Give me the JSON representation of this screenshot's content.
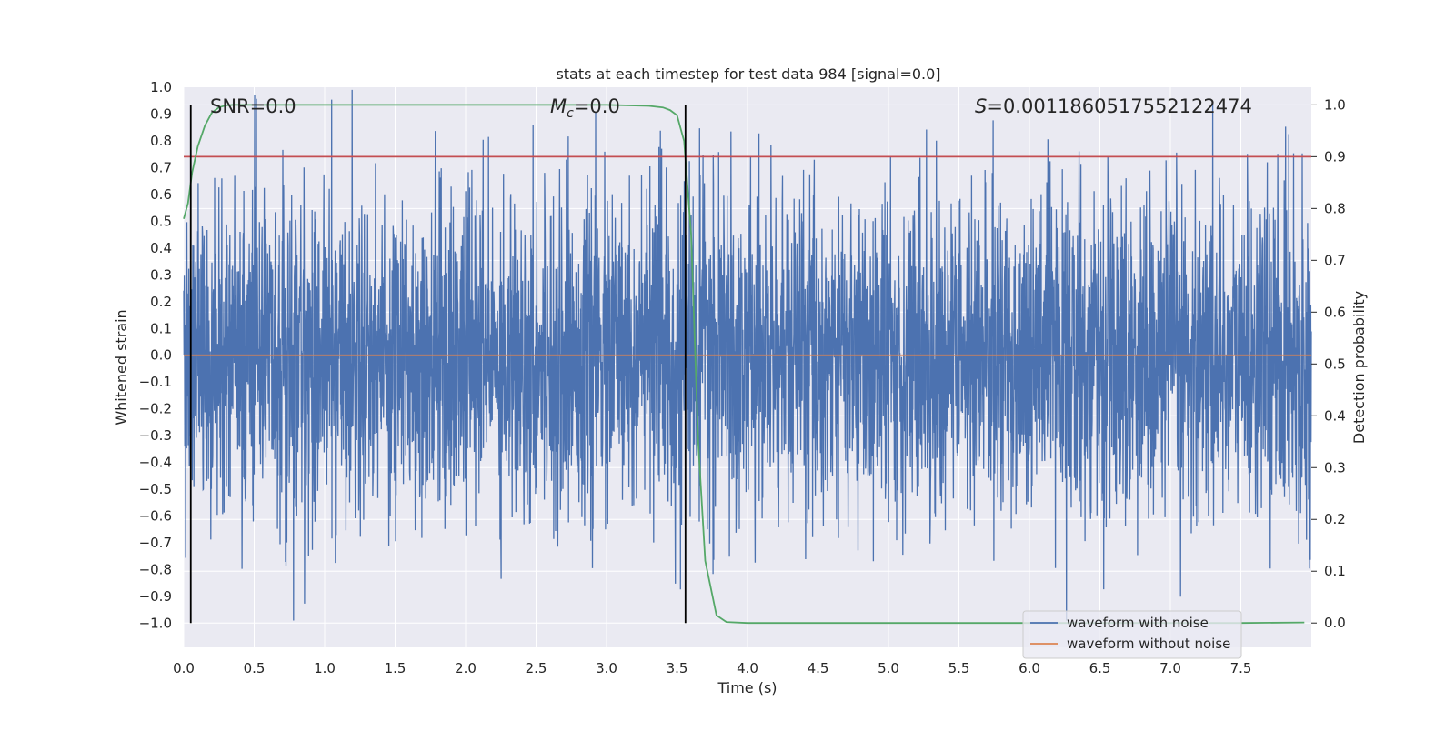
{
  "chart_data": {
    "type": "line",
    "title": "stats at each timestep for test data 984 [signal=0.0]",
    "xlabel": "Time (s)",
    "ylabel": "Whitened strain",
    "y2label": "Detection probability",
    "xlim": [
      0.0,
      8.0
    ],
    "ylim": [
      -1.09,
      1.0
    ],
    "y2lim": [
      -0.047,
      1.034
    ],
    "x_ticks": [
      0.0,
      0.5,
      1.0,
      1.5,
      2.0,
      2.5,
      3.0,
      3.5,
      4.0,
      4.5,
      5.0,
      5.5,
      6.0,
      6.5,
      7.0,
      7.5
    ],
    "x_tick_labels": [
      "0.0",
      "0.5",
      "1.0",
      "1.5",
      "2.0",
      "2.5",
      "3.0",
      "3.5",
      "4.0",
      "4.5",
      "5.0",
      "5.5",
      "6.0",
      "6.5",
      "7.0",
      "7.5"
    ],
    "y_ticks": [
      1.0,
      0.9,
      0.8,
      0.7,
      0.6,
      0.5,
      0.4,
      0.3,
      0.2,
      0.1,
      0.0,
      -0.1,
      -0.2,
      -0.3,
      -0.4,
      -0.5,
      -0.6,
      -0.7,
      -0.8,
      -0.9,
      -1.0
    ],
    "y_tick_labels": [
      "1.0",
      "0.9",
      "0.8",
      "0.7",
      "0.6",
      "0.5",
      "0.4",
      "0.3",
      "0.2",
      "0.1",
      "0.0",
      "−0.1",
      "−0.2",
      "−0.3",
      "−0.4",
      "−0.5",
      "−0.6",
      "−0.7",
      "−0.8",
      "−0.9",
      "−1.0"
    ],
    "y2_ticks": [
      1.0,
      0.9,
      0.8,
      0.7,
      0.6,
      0.5,
      0.4,
      0.3,
      0.2,
      0.1,
      0.0
    ],
    "y2_tick_labels": [
      "1.0",
      "0.9",
      "0.8",
      "0.7",
      "0.6",
      "0.5",
      "0.4",
      "0.3",
      "0.2",
      "0.1",
      "0.0"
    ],
    "annotations": {
      "snr": "SNR=0.0",
      "mc_symbol": "M",
      "mc_subscript": "c",
      "mc_value": "=0.0",
      "s_symbol": "S",
      "s_value": "=0.0011860517552122474"
    },
    "vertical_markers": [
      0.05,
      3.56
    ],
    "threshold": 0.9,
    "detection_probability": {
      "x": [
        0.0,
        0.03,
        0.06,
        0.1,
        0.15,
        0.2,
        0.25,
        0.3,
        0.35,
        0.4,
        0.5,
        1.0,
        2.0,
        3.0,
        3.3,
        3.4,
        3.45,
        3.5,
        3.55,
        3.6,
        3.65,
        3.7,
        3.78,
        3.85,
        4.0,
        5.0,
        6.0,
        7.0,
        7.5,
        7.95
      ],
      "y": [
        0.78,
        0.81,
        0.87,
        0.92,
        0.96,
        0.985,
        0.995,
        0.999,
        1.0,
        1.0,
        1.0,
        1.0,
        1.0,
        1.0,
        0.998,
        0.995,
        0.99,
        0.98,
        0.93,
        0.75,
        0.35,
        0.12,
        0.015,
        0.002,
        0.0,
        0.0,
        0.0,
        0.0,
        0.0,
        0.001
      ]
    },
    "series": [
      {
        "name": "waveform with noise",
        "color": "#4c72b0",
        "description": "whitened noise, amplitude mostly within ±0.75, peaks to about ±1.0"
      },
      {
        "name": "waveform without noise",
        "color": "#dd8452",
        "value": 0.0
      }
    ],
    "colors": {
      "plot_bg": "#eaeaf2",
      "grid": "#ffffff",
      "noise": "#4c72b0",
      "clean": "#dd8452",
      "prob": "#55a868",
      "threshold": "#c44e52",
      "marker": "#000000"
    },
    "legend": {
      "location": "lower right",
      "entries": [
        "waveform with noise",
        "waveform without noise"
      ]
    }
  }
}
